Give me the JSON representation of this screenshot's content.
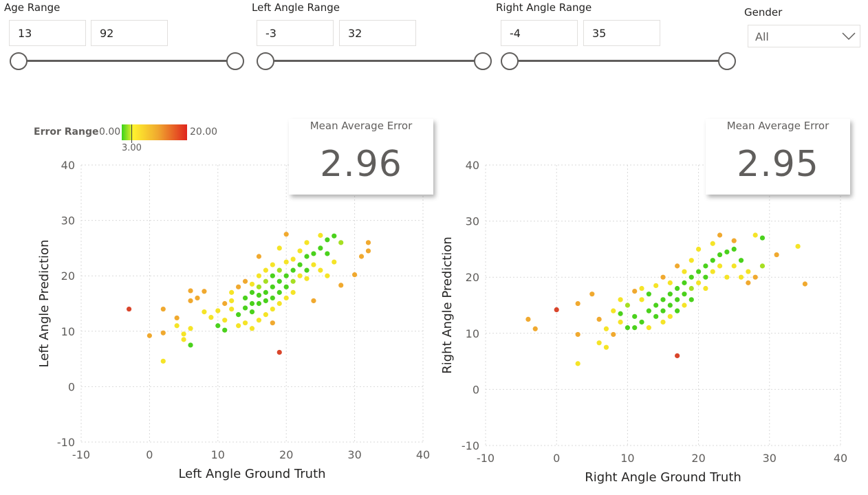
{
  "filters": {
    "age": {
      "title": "Age Range",
      "min": "13",
      "max": "92"
    },
    "left_angle": {
      "title": "Left Angle Range",
      "min": "-3",
      "max": "32"
    },
    "right_angle": {
      "title": "Right Angle Range",
      "min": "-4",
      "max": "35"
    },
    "gender": {
      "title": "Gender",
      "value": "All"
    }
  },
  "legend": {
    "title": "Error Range",
    "min_label": "0.00",
    "max_label": "20.00",
    "mid_label": "3.00",
    "colors": [
      "#3ad31b",
      "#fff12e",
      "#f0a92f",
      "#e0251e"
    ]
  },
  "cards": {
    "left": {
      "label": "Mean Average Error",
      "value": "2.96"
    },
    "right": {
      "label": "Mean Average Error",
      "value": "2.95"
    }
  },
  "palette": {
    "green": "#4ad11c",
    "lime": "#a6df22",
    "yellow": "#f5e427",
    "orange": "#f0a92f",
    "red": "#d9452b",
    "text": "#252423",
    "axis_text": "#605e5c",
    "grid": "#d9d9d9"
  },
  "chart_data": [
    {
      "type": "scatter",
      "xlabel": "Left Angle Ground Truth",
      "ylabel": "Left Angle Prediction",
      "xlim": [
        -10,
        40
      ],
      "ylim": [
        -10,
        40
      ],
      "xticks": [
        "-10",
        "0",
        "10",
        "20",
        "30",
        "40"
      ],
      "yticks": [
        "-10",
        "0",
        "10",
        "20",
        "30",
        "40"
      ],
      "points": [
        [
          -3,
          14,
          "red"
        ],
        [
          0,
          9.2,
          "orange"
        ],
        [
          2,
          4.6,
          "yellow"
        ],
        [
          2,
          9.7,
          "orange"
        ],
        [
          2,
          14,
          "orange"
        ],
        [
          4,
          12.4,
          "orange"
        ],
        [
          4,
          11,
          "yellow"
        ],
        [
          5,
          8.5,
          "yellow"
        ],
        [
          5,
          9.5,
          "yellow"
        ],
        [
          6,
          7.5,
          "green"
        ],
        [
          6,
          10.5,
          "yellow"
        ],
        [
          6,
          15.5,
          "orange"
        ],
        [
          6,
          17.3,
          "orange"
        ],
        [
          7,
          16,
          "orange"
        ],
        [
          8,
          17.2,
          "orange"
        ],
        [
          8,
          13.5,
          "yellow"
        ],
        [
          9,
          12.5,
          "yellow"
        ],
        [
          10,
          13.7,
          "yellow"
        ],
        [
          10,
          11,
          "green"
        ],
        [
          11,
          10.2,
          "green"
        ],
        [
          11,
          12,
          "yellow"
        ],
        [
          11,
          15,
          "orange"
        ],
        [
          12,
          14,
          "yellow"
        ],
        [
          12,
          15.5,
          "yellow"
        ],
        [
          12,
          17,
          "yellow"
        ],
        [
          13,
          18,
          "orange"
        ],
        [
          13,
          13,
          "green"
        ],
        [
          13,
          11,
          "yellow"
        ],
        [
          14,
          14.2,
          "green"
        ],
        [
          14,
          16,
          "green"
        ],
        [
          14,
          19,
          "orange"
        ],
        [
          14,
          11.5,
          "yellow"
        ],
        [
          15,
          15,
          "green"
        ],
        [
          15,
          17,
          "green"
        ],
        [
          15,
          13.5,
          "green"
        ],
        [
          15,
          18.5,
          "yellow"
        ],
        [
          15,
          10.5,
          "yellow"
        ],
        [
          16,
          16.5,
          "green"
        ],
        [
          16,
          15,
          "green"
        ],
        [
          16,
          18,
          "lime"
        ],
        [
          16,
          20,
          "yellow"
        ],
        [
          16,
          12,
          "yellow"
        ],
        [
          16,
          23.5,
          "orange"
        ],
        [
          17,
          17,
          "green"
        ],
        [
          17,
          15.5,
          "green"
        ],
        [
          17,
          19,
          "lime"
        ],
        [
          17,
          21,
          "yellow"
        ],
        [
          17,
          13,
          "yellow"
        ],
        [
          18,
          18,
          "green"
        ],
        [
          18,
          16,
          "green"
        ],
        [
          18,
          20,
          "green"
        ],
        [
          18,
          22,
          "yellow"
        ],
        [
          18,
          14,
          "yellow"
        ],
        [
          18,
          11.5,
          "orange"
        ],
        [
          19,
          19,
          "green"
        ],
        [
          19,
          17,
          "green"
        ],
        [
          19,
          21,
          "lime"
        ],
        [
          19,
          15,
          "yellow"
        ],
        [
          19,
          25,
          "yellow"
        ],
        [
          19,
          6.2,
          "red"
        ],
        [
          20,
          20,
          "green"
        ],
        [
          20,
          18,
          "green"
        ],
        [
          20,
          22.5,
          "yellow"
        ],
        [
          20,
          16,
          "yellow"
        ],
        [
          20,
          27.5,
          "orange"
        ],
        [
          21,
          21,
          "green"
        ],
        [
          21,
          19,
          "lime"
        ],
        [
          21,
          17,
          "yellow"
        ],
        [
          21,
          23,
          "yellow"
        ],
        [
          22,
          22,
          "green"
        ],
        [
          22,
          20,
          "yellow"
        ],
        [
          22,
          24.5,
          "yellow"
        ],
        [
          23,
          23.5,
          "green"
        ],
        [
          23,
          21,
          "green"
        ],
        [
          23,
          19.5,
          "yellow"
        ],
        [
          23,
          26,
          "yellow"
        ],
        [
          24,
          24,
          "green"
        ],
        [
          24,
          22,
          "yellow"
        ],
        [
          24,
          15.5,
          "orange"
        ],
        [
          25,
          27.3,
          "yellow"
        ],
        [
          25,
          25,
          "green"
        ],
        [
          25,
          21,
          "yellow"
        ],
        [
          26,
          24,
          "green"
        ],
        [
          26,
          26.5,
          "green"
        ],
        [
          26,
          20,
          "yellow"
        ],
        [
          27,
          27.2,
          "green"
        ],
        [
          27,
          22.5,
          "yellow"
        ],
        [
          28,
          26,
          "lime"
        ],
        [
          28,
          18.3,
          "orange"
        ],
        [
          30,
          20.2,
          "orange"
        ],
        [
          31,
          23.5,
          "orange"
        ],
        [
          32,
          26,
          "orange"
        ],
        [
          32,
          24.5,
          "orange"
        ]
      ]
    },
    {
      "type": "scatter",
      "xlabel": "Right Angle Ground Truth",
      "ylabel": "Right Angle Prediction",
      "xlim": [
        -10,
        40
      ],
      "ylim": [
        -10,
        40
      ],
      "xticks": [
        "-10",
        "0",
        "10",
        "20",
        "30",
        "40"
      ],
      "yticks": [
        "-10",
        "0",
        "10",
        "20",
        "30",
        "40"
      ],
      "points": [
        [
          -4,
          12.5,
          "orange"
        ],
        [
          -3,
          10.8,
          "orange"
        ],
        [
          0,
          14.2,
          "red"
        ],
        [
          3,
          4.6,
          "yellow"
        ],
        [
          3,
          9.8,
          "orange"
        ],
        [
          3,
          15.3,
          "orange"
        ],
        [
          5,
          17,
          "orange"
        ],
        [
          6,
          12.5,
          "orange"
        ],
        [
          6,
          8.3,
          "yellow"
        ],
        [
          7,
          7.5,
          "yellow"
        ],
        [
          7,
          10.8,
          "yellow"
        ],
        [
          8,
          9.8,
          "orange"
        ],
        [
          8,
          14,
          "yellow"
        ],
        [
          9,
          13.5,
          "green"
        ],
        [
          9,
          12,
          "yellow"
        ],
        [
          9,
          16,
          "yellow"
        ],
        [
          10,
          11,
          "green"
        ],
        [
          10,
          15,
          "lime"
        ],
        [
          11,
          13,
          "green"
        ],
        [
          11,
          17.5,
          "orange"
        ],
        [
          11,
          11,
          "green"
        ],
        [
          12,
          12,
          "green"
        ],
        [
          12,
          16,
          "yellow"
        ],
        [
          12,
          18,
          "yellow"
        ],
        [
          13,
          14,
          "green"
        ],
        [
          13,
          11,
          "yellow"
        ],
        [
          13,
          17,
          "green"
        ],
        [
          14,
          15,
          "green"
        ],
        [
          14,
          13,
          "green"
        ],
        [
          14,
          18.5,
          "yellow"
        ],
        [
          15,
          16,
          "green"
        ],
        [
          15,
          14,
          "green"
        ],
        [
          15,
          20,
          "orange"
        ],
        [
          15,
          12,
          "yellow"
        ],
        [
          16,
          17,
          "green"
        ],
        [
          16,
          15,
          "green"
        ],
        [
          16,
          19,
          "yellow"
        ],
        [
          16,
          13,
          "yellow"
        ],
        [
          17,
          18,
          "green"
        ],
        [
          17,
          16,
          "green"
        ],
        [
          17,
          14,
          "green"
        ],
        [
          17,
          22,
          "orange"
        ],
        [
          17,
          6,
          "red"
        ],
        [
          18,
          19,
          "green"
        ],
        [
          18,
          17,
          "green"
        ],
        [
          18,
          15,
          "yellow"
        ],
        [
          18,
          21,
          "yellow"
        ],
        [
          19,
          20,
          "green"
        ],
        [
          19,
          18,
          "lime"
        ],
        [
          19,
          16,
          "green"
        ],
        [
          19,
          23,
          "yellow"
        ],
        [
          20,
          21,
          "green"
        ],
        [
          20,
          19,
          "yellow"
        ],
        [
          20,
          25,
          "yellow"
        ],
        [
          21,
          22,
          "green"
        ],
        [
          21,
          20,
          "green"
        ],
        [
          21,
          18,
          "yellow"
        ],
        [
          22,
          23,
          "green"
        ],
        [
          22,
          21,
          "yellow"
        ],
        [
          22,
          26,
          "yellow"
        ],
        [
          23,
          24,
          "green"
        ],
        [
          23,
          22,
          "yellow"
        ],
        [
          23,
          27.5,
          "orange"
        ],
        [
          24,
          24.5,
          "green"
        ],
        [
          24,
          20,
          "yellow"
        ],
        [
          25,
          25,
          "green"
        ],
        [
          25,
          22,
          "yellow"
        ],
        [
          25,
          26.5,
          "orange"
        ],
        [
          26,
          23,
          "green"
        ],
        [
          26,
          20,
          "yellow"
        ],
        [
          27,
          21,
          "yellow"
        ],
        [
          27,
          19,
          "orange"
        ],
        [
          28,
          27.5,
          "yellow"
        ],
        [
          28,
          20,
          "orange"
        ],
        [
          29,
          27,
          "green"
        ],
        [
          29,
          22,
          "lime"
        ],
        [
          31,
          24,
          "orange"
        ],
        [
          34,
          25.5,
          "yellow"
        ],
        [
          35,
          18.8,
          "orange"
        ]
      ]
    }
  ]
}
